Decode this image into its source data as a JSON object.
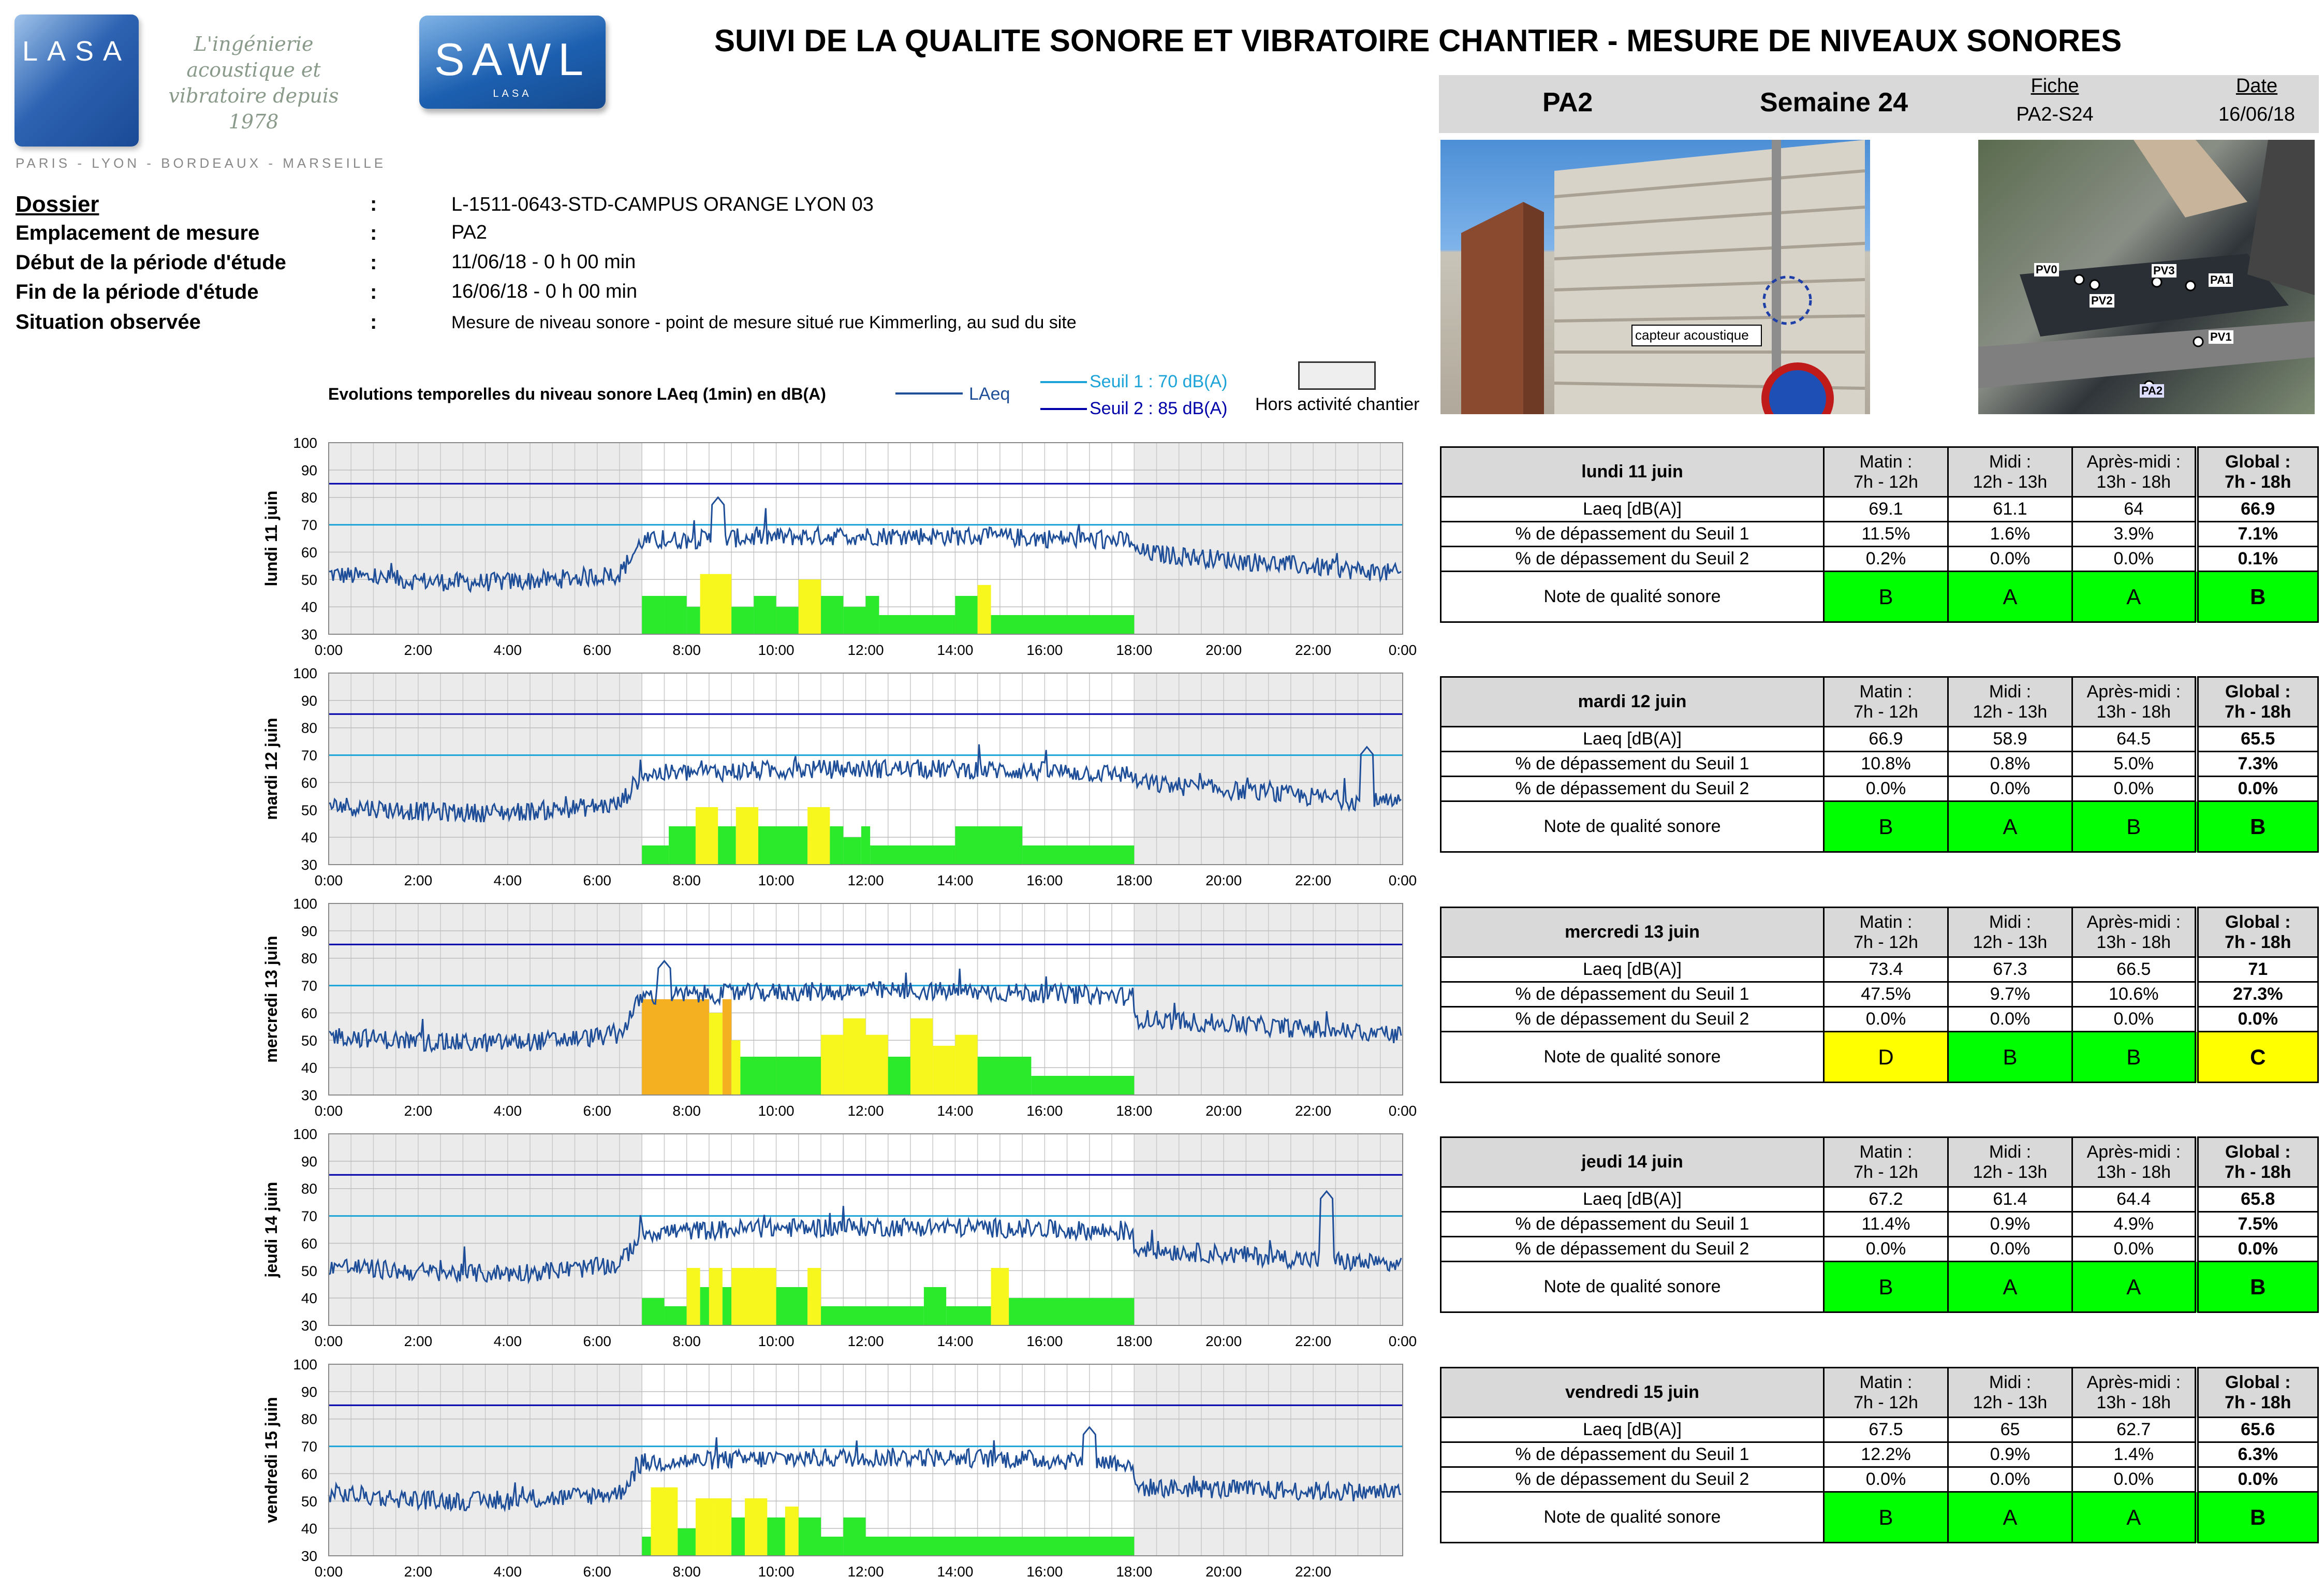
{
  "header": {
    "title": "SUIVI DE LA QUALITE SONORE ET VIBRATOIRE CHANTIER - MESURE DE NIVEAUX SONORES",
    "point": "PA2",
    "week": "Semaine 24",
    "fiche_label": "Fiche",
    "fiche_value": "PA2-S24",
    "date_label": "Date",
    "date_value": "16/06/18"
  },
  "logos": {
    "lasa": "LASA",
    "lasa_tagline": "L'ingénierie acoustique et vibratoire depuis 1978",
    "lasa_cities": "PARIS - LYON - BORDEAUX - MARSEILLE",
    "sawl": "SAWL",
    "sawl_sub": "LASA"
  },
  "photos": {
    "sensor_label": "capteur acoustique",
    "map_labels": [
      "PV0",
      "PV2",
      "PV3",
      "PA1",
      "PV1",
      "PA2"
    ]
  },
  "info": [
    {
      "label": "Dossier",
      "colon": ":",
      "value": "L-1511-0643-STD-CAMPUS ORANGE LYON 03"
    },
    {
      "label": "Emplacement de mesure",
      "colon": ":",
      "value": "PA2"
    },
    {
      "label": "Début de la période d'étude",
      "colon": ":",
      "value": "11/06/18 - 0 h 00 min"
    },
    {
      "label": "Fin de la période d'étude",
      "colon": ":",
      "value": "16/06/18 - 0 h 00 min"
    },
    {
      "label": "Situation observée",
      "colon": ":",
      "value": "Mesure de niveau sonore - point de mesure situé rue Kimmerling, au sud du site"
    }
  ],
  "legend": {
    "title": "Evolutions temporelles du niveau sonore LAeq (1min) en dB(A)",
    "laeq": "LAeq",
    "seuil1": "Seuil 1 : 70 dB(A)",
    "seuil2": "Seuil 2 : 85 dB(A)",
    "hors": "Hors activité chantier"
  },
  "colors": {
    "laeq": "#1f4e99",
    "seuil1": "#1ca3d8",
    "seuil2": "#0000aa",
    "note_green": "#00ff00",
    "note_yellow": "#ffff00",
    "bar_orange": "#f5b022",
    "hors_activite": "#ebebeb"
  },
  "table_headers": {
    "matin": "Matin :",
    "matin_h": "7h - 12h",
    "midi": "Midi :",
    "midi_h": "12h - 13h",
    "apres": "Après-midi :",
    "apres_h": "13h - 18h",
    "global": "Global :",
    "global_h": "7h - 18h",
    "row_laeq": "Laeq [dB(A)]",
    "row_s1": "% de dépassement du Seuil 1",
    "row_s2": "% de dépassement du Seuil 2",
    "row_note": "Note de qualité sonore"
  },
  "chart_data": [
    {
      "type": "line",
      "title": "lundi 11 juin",
      "ylabel": "lundi 11 juin",
      "ylim": [
        30,
        100
      ],
      "yticks": [
        "100",
        "90",
        "80",
        "70",
        "60",
        "50",
        "40",
        "30"
      ],
      "xticks": [
        "0:00",
        "2:00",
        "4:00",
        "6:00",
        "8:00",
        "10:00",
        "12:00",
        "14:00",
        "16:00",
        "18:00",
        "20:00",
        "22:00",
        "0:00"
      ],
      "thresholds": [
        70,
        85
      ],
      "hors_activite_hours": [
        [
          0,
          7
        ],
        [
          18,
          24
        ]
      ],
      "profile": {
        "night": 52,
        "day": 64,
        "evening": 60,
        "peak_hour": 8.7,
        "peak_value": 80
      },
      "bars": [
        {
          "start": 7.0,
          "end": 7.5,
          "value": 44,
          "color": "green"
        },
        {
          "start": 7.5,
          "end": 8.0,
          "value": 44,
          "color": "green"
        },
        {
          "start": 8.0,
          "end": 8.3,
          "value": 40,
          "color": "green"
        },
        {
          "start": 8.3,
          "end": 9.0,
          "value": 52,
          "color": "yellow"
        },
        {
          "start": 9.0,
          "end": 9.5,
          "value": 40,
          "color": "green"
        },
        {
          "start": 9.5,
          "end": 10.0,
          "value": 44,
          "color": "green"
        },
        {
          "start": 10.0,
          "end": 10.5,
          "value": 40,
          "color": "green"
        },
        {
          "start": 10.5,
          "end": 11.0,
          "value": 50,
          "color": "yellow"
        },
        {
          "start": 11.0,
          "end": 11.5,
          "value": 44,
          "color": "green"
        },
        {
          "start": 11.5,
          "end": 12.0,
          "value": 40,
          "color": "green"
        },
        {
          "start": 12.0,
          "end": 12.3,
          "value": 44,
          "color": "green"
        },
        {
          "start": 12.3,
          "end": 14.0,
          "value": 37,
          "color": "green"
        },
        {
          "start": 14.0,
          "end": 14.5,
          "value": 44,
          "color": "green"
        },
        {
          "start": 14.5,
          "end": 14.8,
          "value": 48,
          "color": "yellow"
        },
        {
          "start": 14.8,
          "end": 18.0,
          "value": 37,
          "color": "green"
        }
      ]
    },
    {
      "type": "line",
      "title": "mardi 12 juin",
      "ylabel": "mardi 12 juin",
      "ylim": [
        30,
        100
      ],
      "yticks": [
        "100",
        "90",
        "80",
        "70",
        "60",
        "50",
        "40",
        "30"
      ],
      "xticks": [
        "0:00",
        "2:00",
        "4:00",
        "6:00",
        "8:00",
        "10:00",
        "12:00",
        "14:00",
        "16:00",
        "18:00",
        "20:00",
        "22:00",
        "0:00"
      ],
      "thresholds": [
        70,
        85
      ],
      "hors_activite_hours": [
        [
          0,
          7
        ],
        [
          18,
          24
        ]
      ],
      "profile": {
        "night": 52,
        "day": 63,
        "evening": 60,
        "peak_hour": 23.2,
        "peak_value": 73
      },
      "bars": [
        {
          "start": 7.0,
          "end": 7.6,
          "value": 37,
          "color": "green"
        },
        {
          "start": 7.6,
          "end": 8.2,
          "value": 44,
          "color": "green"
        },
        {
          "start": 8.2,
          "end": 8.7,
          "value": 51,
          "color": "yellow"
        },
        {
          "start": 8.7,
          "end": 9.1,
          "value": 44,
          "color": "green"
        },
        {
          "start": 9.1,
          "end": 9.6,
          "value": 51,
          "color": "yellow"
        },
        {
          "start": 9.6,
          "end": 10.7,
          "value": 44,
          "color": "green"
        },
        {
          "start": 10.7,
          "end": 11.2,
          "value": 51,
          "color": "yellow"
        },
        {
          "start": 11.2,
          "end": 11.5,
          "value": 44,
          "color": "green"
        },
        {
          "start": 11.5,
          "end": 11.9,
          "value": 40,
          "color": "green"
        },
        {
          "start": 11.9,
          "end": 12.1,
          "value": 44,
          "color": "green"
        },
        {
          "start": 12.1,
          "end": 14.0,
          "value": 37,
          "color": "green"
        },
        {
          "start": 14.0,
          "end": 15.5,
          "value": 44,
          "color": "green"
        },
        {
          "start": 15.5,
          "end": 18.0,
          "value": 37,
          "color": "green"
        }
      ]
    },
    {
      "type": "line",
      "title": "mercredi 13 juin",
      "ylabel": "mercredi 13 juin",
      "ylim": [
        30,
        100
      ],
      "yticks": [
        "100",
        "90",
        "80",
        "70",
        "60",
        "50",
        "40",
        "30"
      ],
      "xticks": [
        "0:00",
        "2:00",
        "4:00",
        "6:00",
        "8:00",
        "10:00",
        "12:00",
        "14:00",
        "16:00",
        "18:00",
        "20:00",
        "22:00",
        "0:00"
      ],
      "thresholds": [
        70,
        85
      ],
      "hors_activite_hours": [
        [
          0,
          7
        ],
        [
          18,
          24
        ]
      ],
      "profile": {
        "night": 52,
        "day": 66,
        "evening": 58,
        "peak_hour": 7.5,
        "peak_value": 79
      },
      "bars": [
        {
          "start": 7.0,
          "end": 8.5,
          "value": 65,
          "color": "orange"
        },
        {
          "start": 8.5,
          "end": 8.8,
          "value": 60,
          "color": "yellow"
        },
        {
          "start": 8.8,
          "end": 9.0,
          "value": 65,
          "color": "orange"
        },
        {
          "start": 9.0,
          "end": 9.2,
          "value": 50,
          "color": "yellow"
        },
        {
          "start": 9.2,
          "end": 10.0,
          "value": 44,
          "color": "green"
        },
        {
          "start": 10.0,
          "end": 11.0,
          "value": 44,
          "color": "green"
        },
        {
          "start": 11.0,
          "end": 11.5,
          "value": 52,
          "color": "yellow"
        },
        {
          "start": 11.5,
          "end": 12.0,
          "value": 58,
          "color": "yellow"
        },
        {
          "start": 12.0,
          "end": 12.5,
          "value": 52,
          "color": "yellow"
        },
        {
          "start": 12.5,
          "end": 13.0,
          "value": 44,
          "color": "green"
        },
        {
          "start": 13.0,
          "end": 13.5,
          "value": 58,
          "color": "yellow"
        },
        {
          "start": 13.5,
          "end": 14.0,
          "value": 48,
          "color": "yellow"
        },
        {
          "start": 14.0,
          "end": 14.5,
          "value": 52,
          "color": "yellow"
        },
        {
          "start": 14.5,
          "end": 15.7,
          "value": 44,
          "color": "green"
        },
        {
          "start": 15.7,
          "end": 18.0,
          "value": 37,
          "color": "green"
        }
      ]
    },
    {
      "type": "line",
      "title": "jeudi 14 juin",
      "ylabel": "jeudi 14 juin",
      "ylim": [
        30,
        100
      ],
      "yticks": [
        "100",
        "90",
        "80",
        "70",
        "60",
        "50",
        "40",
        "30"
      ],
      "xticks": [
        "0:00",
        "2:00",
        "4:00",
        "6:00",
        "8:00",
        "10:00",
        "12:00",
        "14:00",
        "16:00",
        "18:00",
        "20:00",
        "22:00",
        "0:00"
      ],
      "thresholds": [
        70,
        85
      ],
      "hors_activite_hours": [
        [
          0,
          7
        ],
        [
          18,
          24
        ]
      ],
      "profile": {
        "night": 52,
        "day": 64,
        "evening": 58,
        "peak_hour": 22.3,
        "peak_value": 79
      },
      "bars": [
        {
          "start": 7.0,
          "end": 7.5,
          "value": 40,
          "color": "green"
        },
        {
          "start": 7.5,
          "end": 8.0,
          "value": 37,
          "color": "green"
        },
        {
          "start": 8.0,
          "end": 8.3,
          "value": 51,
          "color": "yellow"
        },
        {
          "start": 8.3,
          "end": 8.5,
          "value": 44,
          "color": "green"
        },
        {
          "start": 8.5,
          "end": 8.8,
          "value": 51,
          "color": "yellow"
        },
        {
          "start": 8.8,
          "end": 9.0,
          "value": 44,
          "color": "green"
        },
        {
          "start": 9.0,
          "end": 10.0,
          "value": 51,
          "color": "yellow"
        },
        {
          "start": 10.0,
          "end": 10.7,
          "value": 44,
          "color": "green"
        },
        {
          "start": 10.7,
          "end": 11.0,
          "value": 51,
          "color": "yellow"
        },
        {
          "start": 11.0,
          "end": 12.0,
          "value": 37,
          "color": "green"
        },
        {
          "start": 12.0,
          "end": 13.3,
          "value": 37,
          "color": "green"
        },
        {
          "start": 13.3,
          "end": 13.8,
          "value": 44,
          "color": "green"
        },
        {
          "start": 13.8,
          "end": 14.8,
          "value": 37,
          "color": "green"
        },
        {
          "start": 14.8,
          "end": 15.2,
          "value": 51,
          "color": "yellow"
        },
        {
          "start": 15.2,
          "end": 18.0,
          "value": 40,
          "color": "green"
        }
      ]
    },
    {
      "type": "line",
      "title": "vendredi 15 juin",
      "ylabel": "vendredi 15 juin",
      "ylim": [
        30,
        100
      ],
      "yticks": [
        "100",
        "90",
        "80",
        "70",
        "60",
        "50",
        "40",
        "30"
      ],
      "xticks": [
        "0:00",
        "2:00",
        "4:00",
        "6:00",
        "8:00",
        "10:00",
        "12:00",
        "14:00",
        "16:00",
        "18:00",
        "20:00",
        "22:00"
      ],
      "thresholds": [
        70,
        85
      ],
      "hors_activite_hours": [
        [
          0,
          7
        ],
        [
          18,
          24
        ]
      ],
      "profile": {
        "night": 53,
        "day": 64,
        "evening": 55,
        "peak_hour": 17.0,
        "peak_value": 77
      },
      "bars": [
        {
          "start": 7.0,
          "end": 7.2,
          "value": 37,
          "color": "green"
        },
        {
          "start": 7.2,
          "end": 7.8,
          "value": 55,
          "color": "yellow"
        },
        {
          "start": 7.8,
          "end": 8.2,
          "value": 40,
          "color": "green"
        },
        {
          "start": 8.2,
          "end": 8.6,
          "value": 51,
          "color": "yellow"
        },
        {
          "start": 8.6,
          "end": 9.0,
          "value": 51,
          "color": "yellow"
        },
        {
          "start": 9.0,
          "end": 9.3,
          "value": 44,
          "color": "green"
        },
        {
          "start": 9.3,
          "end": 9.8,
          "value": 51,
          "color": "yellow"
        },
        {
          "start": 9.8,
          "end": 10.2,
          "value": 44,
          "color": "green"
        },
        {
          "start": 10.2,
          "end": 10.5,
          "value": 48,
          "color": "yellow"
        },
        {
          "start": 10.5,
          "end": 11.0,
          "value": 44,
          "color": "green"
        },
        {
          "start": 11.0,
          "end": 11.5,
          "value": 37,
          "color": "green"
        },
        {
          "start": 11.5,
          "end": 12.0,
          "value": 44,
          "color": "green"
        },
        {
          "start": 12.0,
          "end": 18.0,
          "value": 37,
          "color": "green"
        }
      ]
    }
  ],
  "days": [
    {
      "title": "lundi 11 juin",
      "laeq": [
        "69.1",
        "61.1",
        "64",
        "66.9"
      ],
      "s1": [
        "11.5%",
        "1.6%",
        "3.9%",
        "7.1%"
      ],
      "s2": [
        "0.2%",
        "0.0%",
        "0.0%",
        "0.1%"
      ],
      "note": [
        "B",
        "A",
        "A",
        "B"
      ]
    },
    {
      "title": "mardi 12 juin",
      "laeq": [
        "66.9",
        "58.9",
        "64.5",
        "65.5"
      ],
      "s1": [
        "10.8%",
        "0.8%",
        "5.0%",
        "7.3%"
      ],
      "s2": [
        "0.0%",
        "0.0%",
        "0.0%",
        "0.0%"
      ],
      "note": [
        "B",
        "A",
        "B",
        "B"
      ]
    },
    {
      "title": "mercredi 13 juin",
      "laeq": [
        "73.4",
        "67.3",
        "66.5",
        "71"
      ],
      "s1": [
        "47.5%",
        "9.7%",
        "10.6%",
        "27.3%"
      ],
      "s2": [
        "0.0%",
        "0.0%",
        "0.0%",
        "0.0%"
      ],
      "note": [
        "D",
        "B",
        "B",
        "C"
      ]
    },
    {
      "title": "jeudi 14 juin",
      "laeq": [
        "67.2",
        "61.4",
        "64.4",
        "65.8"
      ],
      "s1": [
        "11.4%",
        "0.9%",
        "4.9%",
        "7.5%"
      ],
      "s2": [
        "0.0%",
        "0.0%",
        "0.0%",
        "0.0%"
      ],
      "note": [
        "B",
        "A",
        "A",
        "B"
      ]
    },
    {
      "title": "vendredi 15 juin",
      "laeq": [
        "67.5",
        "65",
        "62.7",
        "65.6"
      ],
      "s1": [
        "12.2%",
        "0.9%",
        "1.4%",
        "6.3%"
      ],
      "s2": [
        "0.0%",
        "0.0%",
        "0.0%",
        "0.0%"
      ],
      "note": [
        "B",
        "A",
        "A",
        "B"
      ]
    }
  ]
}
